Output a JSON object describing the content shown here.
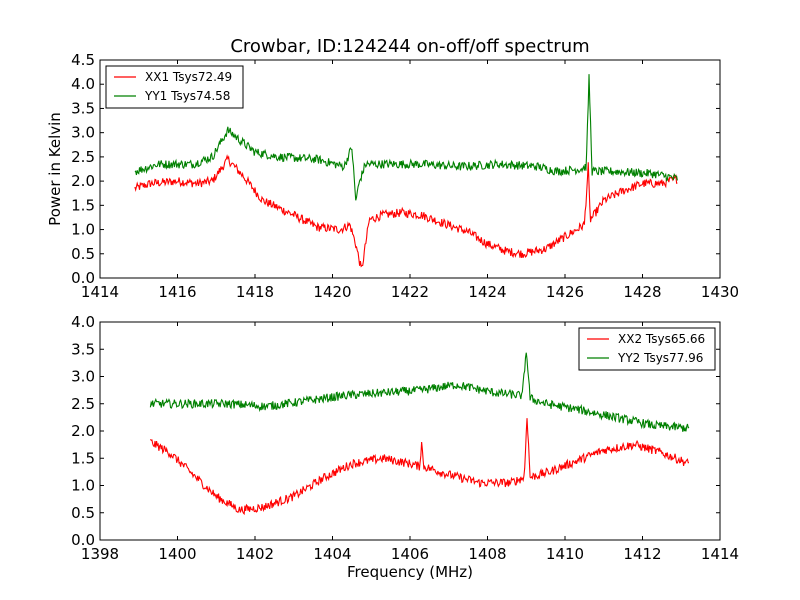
{
  "figure": {
    "title": "Crowbar, ID:124244 on-off/off spectrum"
  },
  "chart_data": [
    {
      "type": "line",
      "title": "Crowbar, ID:124244 on-off/off spectrum",
      "xlabel": "",
      "ylabel": "Power in Kelvin",
      "xlim": [
        1414,
        1430
      ],
      "ylim": [
        0,
        4.5
      ],
      "xticks": [
        1414,
        1416,
        1418,
        1420,
        1422,
        1424,
        1426,
        1428,
        1430
      ],
      "xtick_labels": [
        "1414",
        "1416",
        "1418",
        "1420",
        "1422",
        "1424",
        "1426",
        "1428",
        "1430"
      ],
      "yticks": [
        0,
        0.5,
        1,
        1.5,
        2,
        2.5,
        3,
        3.5,
        4,
        4.5
      ],
      "ytick_labels": [
        "0.0",
        "0.5",
        "1.0",
        "1.5",
        "2.0",
        "2.5",
        "3.0",
        "3.5",
        "4.0",
        "4.5"
      ],
      "legend": "top-left",
      "grid": false,
      "series": [
        {
          "name": "XX1 Tsys72.49",
          "color": "#ff0000",
          "noise": 0.09,
          "x": [
            1414.9,
            1415.3,
            1416.0,
            1416.5,
            1416.9,
            1417.3,
            1417.7,
            1418.2,
            1419.0,
            1419.6,
            1420.2,
            1420.45,
            1420.6,
            1420.75,
            1420.95,
            1421.3,
            1421.8,
            1422.3,
            1422.8,
            1423.5,
            1424.0,
            1424.5,
            1424.9,
            1425.5,
            1426.0,
            1426.3,
            1426.5,
            1426.6,
            1426.65,
            1426.75,
            1427.0,
            1427.5,
            1428.0,
            1428.5,
            1428.9
          ],
          "y": [
            1.85,
            1.95,
            2.0,
            1.95,
            2.0,
            2.45,
            2.1,
            1.6,
            1.3,
            1.05,
            1.0,
            1.1,
            0.7,
            0.15,
            1.2,
            1.3,
            1.35,
            1.3,
            1.15,
            0.95,
            0.7,
            0.55,
            0.5,
            0.6,
            0.85,
            1.0,
            1.1,
            2.3,
            1.2,
            1.3,
            1.6,
            1.8,
            1.95,
            1.95,
            2.05
          ]
        },
        {
          "name": "YY1 Tsys74.58",
          "color": "#008000",
          "noise": 0.09,
          "x": [
            1414.9,
            1415.5,
            1416.4,
            1416.9,
            1417.3,
            1417.6,
            1418.0,
            1418.6,
            1419.6,
            1420.3,
            1420.5,
            1420.6,
            1420.7,
            1420.85,
            1421.3,
            1422.3,
            1423.3,
            1424.3,
            1425.3,
            1425.8,
            1426.4,
            1426.55,
            1426.62,
            1426.7,
            1427.3,
            1428.3,
            1428.9
          ],
          "y": [
            2.2,
            2.35,
            2.35,
            2.5,
            3.05,
            2.85,
            2.6,
            2.5,
            2.45,
            2.3,
            2.7,
            1.6,
            2.0,
            2.35,
            2.35,
            2.35,
            2.3,
            2.35,
            2.3,
            2.2,
            2.25,
            2.3,
            4.15,
            2.2,
            2.2,
            2.15,
            2.05
          ]
        }
      ]
    },
    {
      "type": "line",
      "title": "",
      "xlabel": "Frequency (MHz)",
      "ylabel": "",
      "xlim": [
        1398,
        1414
      ],
      "ylim": [
        0,
        4.0
      ],
      "xticks": [
        1398,
        1400,
        1402,
        1404,
        1406,
        1408,
        1410,
        1412,
        1414
      ],
      "xtick_labels": [
        "1398",
        "1400",
        "1402",
        "1404",
        "1406",
        "1408",
        "1410",
        "1412",
        "1414"
      ],
      "yticks": [
        0,
        0.5,
        1,
        1.5,
        2,
        2.5,
        3,
        3.5,
        4
      ],
      "ytick_labels": [
        "0.0",
        "0.5",
        "1.0",
        "1.5",
        "2.0",
        "2.5",
        "3.0",
        "3.5",
        "4.0"
      ],
      "legend": "top-right",
      "grid": false,
      "series": [
        {
          "name": "XX2 Tsys65.66",
          "color": "#ff0000",
          "noise": 0.08,
          "x": [
            1399.3,
            1399.8,
            1400.4,
            1401.0,
            1401.6,
            1402.2,
            1403.0,
            1403.8,
            1404.5,
            1405.3,
            1406.0,
            1406.25,
            1406.3,
            1406.35,
            1407.0,
            1407.8,
            1408.6,
            1408.95,
            1409.02,
            1409.1,
            1409.6,
            1410.3,
            1411.0,
            1411.8,
            1412.5,
            1413.2
          ],
          "y": [
            1.8,
            1.6,
            1.2,
            0.8,
            0.55,
            0.6,
            0.8,
            1.15,
            1.4,
            1.5,
            1.4,
            1.35,
            1.8,
            1.35,
            1.2,
            1.05,
            1.05,
            1.15,
            2.3,
            1.15,
            1.25,
            1.45,
            1.65,
            1.75,
            1.6,
            1.4
          ]
        },
        {
          "name": "YY2 Tsys77.96",
          "color": "#008000",
          "noise": 0.08,
          "x": [
            1399.3,
            1400.3,
            1401.3,
            1402.3,
            1403.3,
            1404.3,
            1405.3,
            1406.3,
            1407.2,
            1408.2,
            1408.9,
            1409.0,
            1409.1,
            1409.5,
            1410.3,
            1411.3,
            1412.3,
            1413.2
          ],
          "y": [
            2.5,
            2.5,
            2.5,
            2.45,
            2.55,
            2.65,
            2.7,
            2.75,
            2.85,
            2.7,
            2.65,
            3.5,
            2.6,
            2.5,
            2.4,
            2.25,
            2.1,
            2.05
          ]
        }
      ]
    }
  ]
}
